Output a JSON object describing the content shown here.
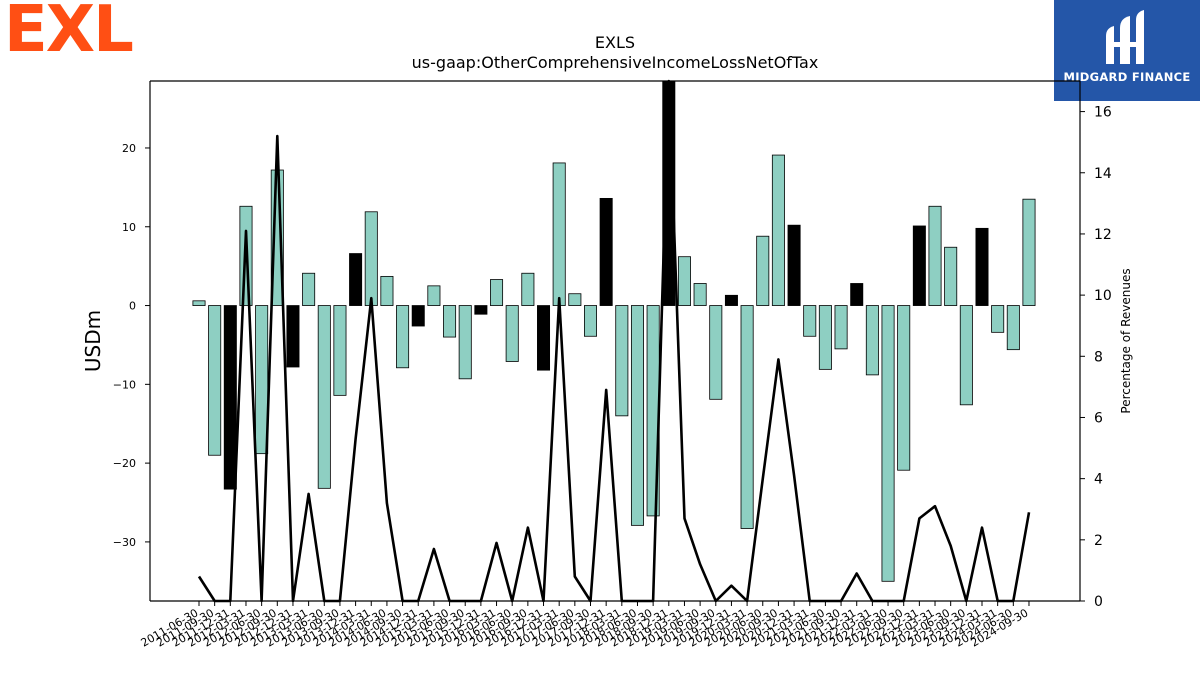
{
  "branding": {
    "left_logo_text": "EXL",
    "right_logo_text": "MIDGARD FINANCE",
    "right_logo_icon": "midgard-logo-icon",
    "left_logo_color": "#ff4f14",
    "right_logo_bg": "#2456a8"
  },
  "chart_data": {
    "type": "bar",
    "title": "EXLS",
    "subtitle": "us-gaap:OtherComprehensiveIncomeLossNetOfTax",
    "ylabel": "USDm",
    "y2label": "Percentage of Revenues",
    "ylim": [
      -37.5,
      28.5
    ],
    "y2lim": [
      0,
      17
    ],
    "yticks": [
      -30,
      -20,
      -10,
      0,
      10,
      20
    ],
    "y2ticks": [
      0,
      2,
      4,
      6,
      8,
      10,
      12,
      14,
      16
    ],
    "grid": false,
    "colors": {
      "q4_bar": "#000000",
      "quarter_bar": "#8ecfc2",
      "line": "#000000"
    },
    "categories": [
      "2011-06-30",
      "2011-09-30",
      "2011-12-31",
      "2012-03-31",
      "2012-06-30",
      "2012-09-30",
      "2012-12-31",
      "2013-03-31",
      "2013-06-30",
      "2013-09-30",
      "2013-12-31",
      "2014-03-31",
      "2014-06-30",
      "2014-09-30",
      "2014-12-31",
      "2015-03-31",
      "2015-06-30",
      "2015-09-30",
      "2015-12-31",
      "2016-03-31",
      "2016-06-30",
      "2016-09-30",
      "2016-12-31",
      "2017-03-31",
      "2017-06-30",
      "2017-09-30",
      "2017-12-31",
      "2018-03-31",
      "2018-06-30",
      "2018-09-30",
      "2018-12-31",
      "2019-03-31",
      "2019-06-30",
      "2019-09-30",
      "2019-12-31",
      "2020-03-31",
      "2020-06-30",
      "2020-09-30",
      "2020-12-31",
      "2021-03-31",
      "2021-06-30",
      "2021-09-30",
      "2021-12-31",
      "2022-03-31",
      "2022-06-30",
      "2022-09-30",
      "2022-12-31",
      "2023-03-31",
      "2023-06-30",
      "2023-09-30",
      "2023-12-31",
      "2024-03-31",
      "2024-06-30",
      "2024-09-30"
    ],
    "values": [
      0.6,
      -19.0,
      -23.3,
      12.6,
      -18.8,
      17.2,
      -7.8,
      4.1,
      -23.2,
      -11.4,
      6.6,
      11.9,
      3.7,
      -7.9,
      -2.6,
      2.5,
      -4.0,
      -9.3,
      -1.1,
      3.3,
      -7.1,
      4.1,
      -8.2,
      18.1,
      1.5,
      -3.9,
      13.6,
      -14.0,
      -27.9,
      -26.7,
      28.5,
      6.2,
      2.8,
      -11.9,
      1.3,
      -28.3,
      8.8,
      19.1,
      10.2,
      -3.9,
      -8.1,
      -5.5,
      2.8,
      -8.8,
      -35.0,
      -20.9,
      10.1,
      12.6,
      7.4,
      -12.6,
      9.8,
      -3.4,
      -5.6,
      13.5
    ],
    "series": [
      {
        "name": "",
        "axis": "secondary",
        "type": "line",
        "values": [
          0.8,
          0,
          0,
          12.1,
          0,
          15.2,
          0,
          3.5,
          0,
          0,
          5.3,
          9.9,
          3.2,
          0,
          0,
          1.7,
          0,
          0,
          0,
          1.9,
          0,
          2.4,
          0,
          9.9,
          0.8,
          0,
          6.9,
          0,
          0,
          0,
          17,
          2.7,
          1.2,
          0,
          0.5,
          0,
          4.0,
          7.9,
          4.1,
          0,
          0,
          0,
          0.9,
          0,
          0,
          0,
          2.7,
          3.1,
          1.8,
          0,
          2.4,
          0,
          0,
          2.9
        ]
      }
    ]
  }
}
